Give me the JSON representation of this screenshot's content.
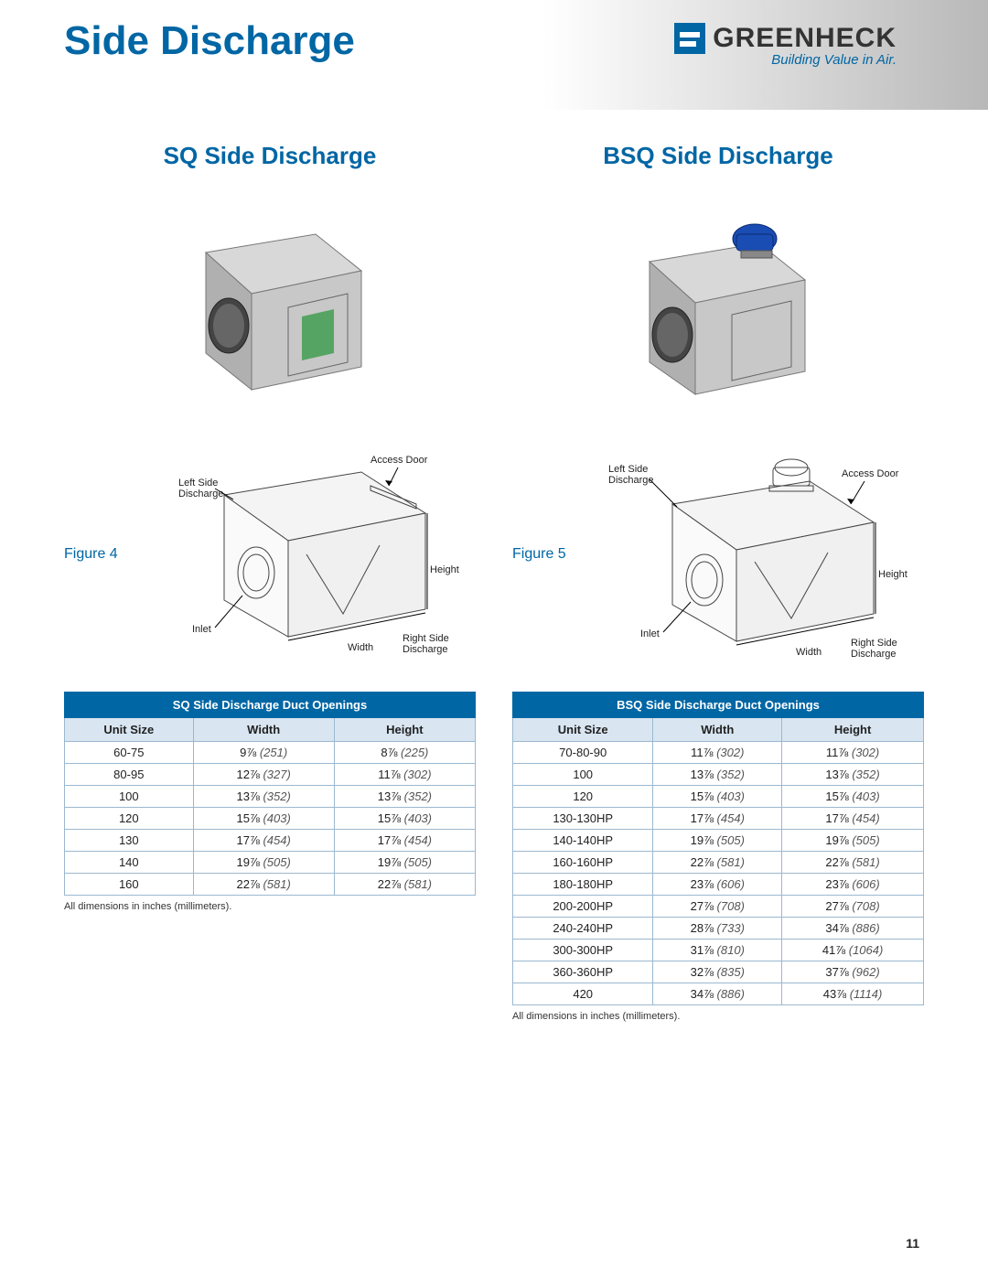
{
  "page": {
    "title": "Side Discharge",
    "number": "11"
  },
  "brand": {
    "name": "GREENHECK",
    "tagline": "Building Value in Air.",
    "logo_bg": "#0066a4"
  },
  "colors": {
    "accent": "#0066a4",
    "table_header_bg": "#0066a4",
    "table_subhead_bg": "#d9e6f2",
    "table_border": "#9bb8d0",
    "metal_light": "#d8d8d8",
    "metal_mid": "#b0b0b0",
    "metal_dark": "#888888",
    "motor_blue": "#1a4db3",
    "fan_green": "#3a9b4a"
  },
  "left": {
    "title": "SQ Side Discharge",
    "figure_label": "Figure 4",
    "diagram_labels": {
      "left_discharge": "Left Side\nDischarge",
      "access_door": "Access Door",
      "inlet": "Inlet",
      "height": "Height",
      "width": "Width",
      "right_discharge": "Right Side\nDischarge"
    },
    "table": {
      "title": "SQ Side Discharge Duct Openings",
      "columns": [
        "Unit Size",
        "Width",
        "Height"
      ],
      "rows": [
        {
          "size": "60-75",
          "w_in": "9⅞",
          "w_mm": "(251)",
          "h_in": "8⅞",
          "h_mm": "(225)"
        },
        {
          "size": "80-95",
          "w_in": "12⅞",
          "w_mm": "(327)",
          "h_in": "11⅞",
          "h_mm": "(302)"
        },
        {
          "size": "100",
          "w_in": "13⅞",
          "w_mm": "(352)",
          "h_in": "13⅞",
          "h_mm": "(352)"
        },
        {
          "size": "120",
          "w_in": "15⅞",
          "w_mm": "(403)",
          "h_in": "15⅞",
          "h_mm": "(403)"
        },
        {
          "size": "130",
          "w_in": "17⅞",
          "w_mm": "(454)",
          "h_in": "17⅞",
          "h_mm": "(454)"
        },
        {
          "size": "140",
          "w_in": "19⅞",
          "w_mm": "(505)",
          "h_in": "19⅞",
          "h_mm": "(505)"
        },
        {
          "size": "160",
          "w_in": "22⅞",
          "w_mm": "(581)",
          "h_in": "22⅞",
          "h_mm": "(581)"
        }
      ],
      "footnote": "All dimensions in inches (millimeters)."
    }
  },
  "right": {
    "title": "BSQ Side Discharge",
    "figure_label": "Figure 5",
    "diagram_labels": {
      "left_discharge": "Left Side\nDischarge",
      "access_door": "Access Door",
      "inlet": "Inlet",
      "height": "Height",
      "width": "Width",
      "right_discharge": "Right Side\nDischarge"
    },
    "table": {
      "title": "BSQ Side Discharge Duct Openings",
      "columns": [
        "Unit Size",
        "Width",
        "Height"
      ],
      "rows": [
        {
          "size": "70-80-90",
          "w_in": "11⅞",
          "w_mm": "(302)",
          "h_in": "11⅞",
          "h_mm": "(302)"
        },
        {
          "size": "100",
          "w_in": "13⅞",
          "w_mm": "(352)",
          "h_in": "13⅞",
          "h_mm": "(352)"
        },
        {
          "size": "120",
          "w_in": "15⅞",
          "w_mm": "(403)",
          "h_in": "15⅞",
          "h_mm": "(403)"
        },
        {
          "size": "130-130HP",
          "w_in": "17⅞",
          "w_mm": "(454)",
          "h_in": "17⅞",
          "h_mm": "(454)"
        },
        {
          "size": "140-140HP",
          "w_in": "19⅞",
          "w_mm": "(505)",
          "h_in": "19⅞",
          "h_mm": "(505)"
        },
        {
          "size": "160-160HP",
          "w_in": "22⅞",
          "w_mm": "(581)",
          "h_in": "22⅞",
          "h_mm": "(581)"
        },
        {
          "size": "180-180HP",
          "w_in": "23⅞",
          "w_mm": "(606)",
          "h_in": "23⅞",
          "h_mm": "(606)"
        },
        {
          "size": "200-200HP",
          "w_in": "27⅞",
          "w_mm": "(708)",
          "h_in": "27⅞",
          "h_mm": "(708)"
        },
        {
          "size": "240-240HP",
          "w_in": "28⅞",
          "w_mm": "(733)",
          "h_in": "34⅞",
          "h_mm": "(886)"
        },
        {
          "size": "300-300HP",
          "w_in": "31⅞",
          "w_mm": "(810)",
          "h_in": "41⅞",
          "h_mm": "(1064)"
        },
        {
          "size": "360-360HP",
          "w_in": "32⅞",
          "w_mm": "(835)",
          "h_in": "37⅞",
          "h_mm": "(962)"
        },
        {
          "size": "420",
          "w_in": "34⅞",
          "w_mm": "(886)",
          "h_in": "43⅞",
          "h_mm": "(1114)"
        }
      ],
      "footnote": "All dimensions in inches (millimeters)."
    }
  }
}
